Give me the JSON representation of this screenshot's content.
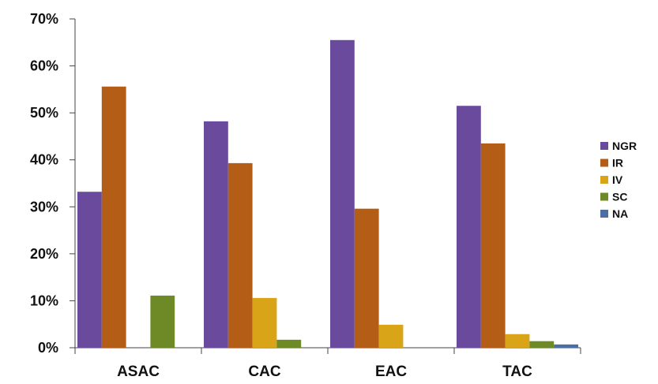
{
  "chart_data": {
    "type": "bar",
    "categories": [
      "ASAC",
      "CAC",
      "EAC",
      "TAC"
    ],
    "series": [
      {
        "name": "NGR",
        "color": "#6a4a9c",
        "values": [
          33.2,
          48.2,
          65.5,
          51.5
        ]
      },
      {
        "name": "IR",
        "color": "#b35d17",
        "values": [
          55.6,
          39.3,
          29.6,
          43.5
        ]
      },
      {
        "name": "IV",
        "color": "#d9a418",
        "values": [
          0,
          10.6,
          4.9,
          2.9
        ]
      },
      {
        "name": "SC",
        "color": "#6e8a27",
        "values": [
          11.1,
          1.7,
          0,
          1.4
        ]
      },
      {
        "name": "NA",
        "color": "#4a6fa5",
        "values": [
          0,
          0,
          0,
          0.7
        ]
      }
    ],
    "yticks": [
      "0%",
      "10%",
      "20%",
      "30%",
      "40%",
      "50%",
      "60%",
      "70%"
    ],
    "ylim": [
      0,
      70
    ],
    "grid": false,
    "legend_position": "right"
  }
}
